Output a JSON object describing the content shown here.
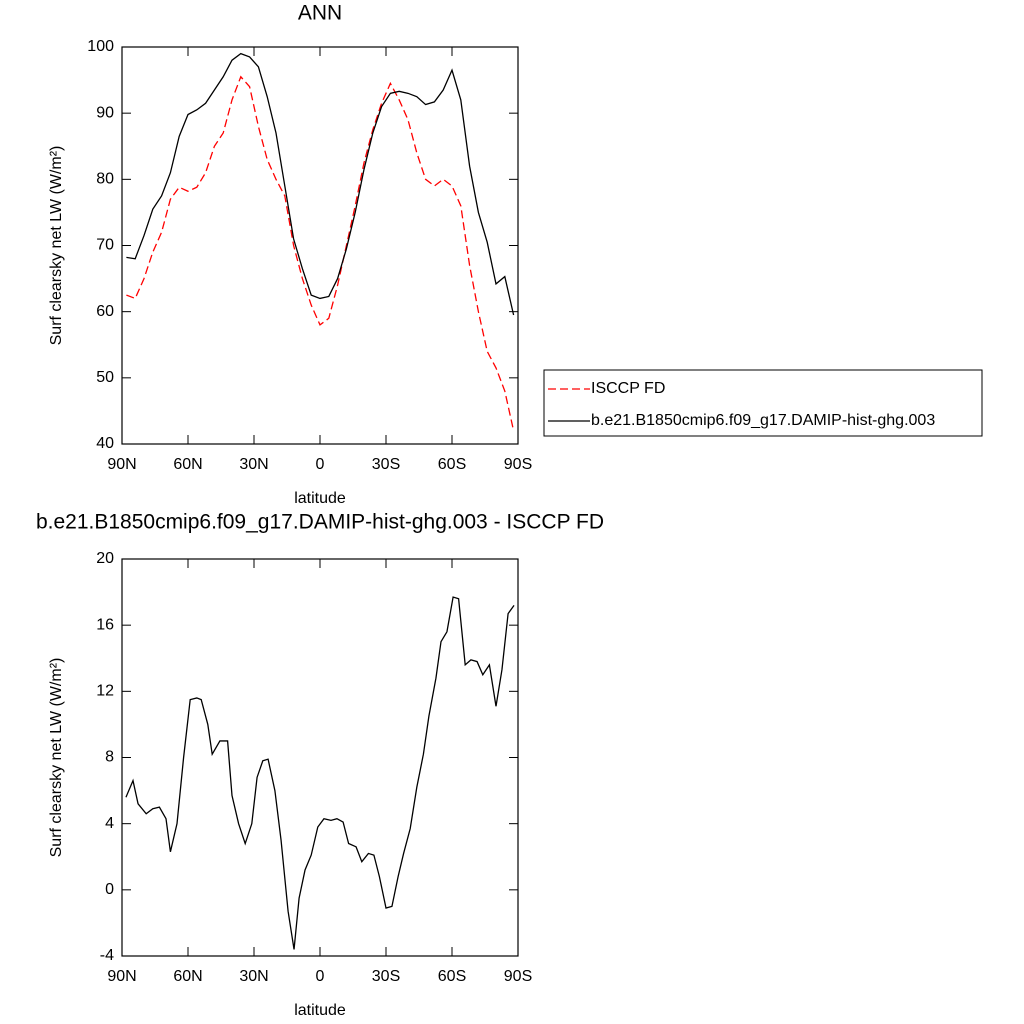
{
  "chart_data": [
    {
      "type": "line",
      "title": "ANN",
      "xlabel": "latitude",
      "ylabel": "Surf clearsky net LW (W/m²)",
      "x": [
        88,
        84,
        80,
        76,
        72,
        68,
        64,
        60,
        56,
        52,
        48,
        44,
        40,
        36,
        32,
        28,
        24,
        20,
        16,
        12,
        8,
        4,
        0,
        -4,
        -8,
        -12,
        -16,
        -20,
        -24,
        -28,
        -32,
        -36,
        -40,
        -44,
        -48,
        -52,
        -56,
        -60,
        -64,
        -68,
        -72,
        -76,
        -80,
        -84,
        -88
      ],
      "series": [
        {
          "name": "ISCCP FD",
          "color": "#ff0000",
          "dashed": true,
          "values": [
            62.5,
            62,
            65,
            69,
            72,
            77,
            78.8,
            78.2,
            78.8,
            81,
            85,
            87,
            92,
            95.5,
            94,
            88,
            83,
            80,
            77.5,
            70,
            65,
            61,
            58,
            59,
            64,
            70,
            76,
            82.5,
            87.5,
            91.5,
            94.5,
            92,
            89,
            84,
            80,
            79,
            80,
            79,
            76,
            67,
            60,
            54,
            51.5,
            48,
            42
          ]
        },
        {
          "name": "b.e21.B1850cmip6.f09_g17.DAMIP-hist-ghg.003",
          "color": "#000000",
          "dashed": false,
          "values": [
            68.2,
            68,
            71.5,
            75.5,
            77.5,
            81,
            86.5,
            89.8,
            90.5,
            91.5,
            93.5,
            95.5,
            98,
            99,
            98.5,
            97,
            92.5,
            87,
            79,
            71,
            66.5,
            62.5,
            62,
            62.3,
            65,
            69.5,
            75,
            81.5,
            87,
            91,
            93,
            93.3,
            93,
            92.5,
            91.3,
            91.7,
            93.5,
            96.5,
            92,
            82,
            75,
            70.5,
            64.2,
            65.3,
            59.5
          ]
        }
      ],
      "xlim": [
        90,
        -90
      ],
      "ylim": [
        40,
        100
      ],
      "xticks": [
        {
          "value": 90,
          "label": "90N"
        },
        {
          "value": 60,
          "label": "60N"
        },
        {
          "value": 30,
          "label": "30N"
        },
        0,
        {
          "value": -30,
          "label": "30S"
        },
        {
          "value": -60,
          "label": "60S"
        },
        {
          "value": -90,
          "label": "90S"
        }
      ],
      "yticks": [
        40,
        50,
        60,
        70,
        80,
        90,
        100
      ],
      "legend": "right"
    },
    {
      "type": "line",
      "title": "b.e21.B1850cmip6.f09_g17.DAMIP-hist-ghg.003 - ISCCP FD",
      "xlabel": "latitude",
      "ylabel": "Surf clearsky net LW (W/m²)",
      "x": [
        88.2,
        85,
        82.7,
        79,
        76,
        73,
        70,
        68,
        65,
        62,
        59,
        56,
        54,
        51,
        49,
        45.5,
        42,
        40,
        37,
        34,
        31,
        28.6,
        26,
        23.6,
        20.5,
        17.7,
        14.5,
        11.8,
        9.5,
        6.8,
        4,
        1,
        -1.8,
        -5,
        -7.7,
        -10.5,
        -13,
        -16.4,
        -19,
        -22,
        -24.5,
        -27,
        -30,
        -32.7,
        -35.5,
        -38,
        -41,
        -44,
        -47,
        -49.5,
        -52.7,
        -55,
        -57.7,
        -60.5,
        -63,
        -66,
        -68.6,
        -71.4,
        -74,
        -77,
        -80,
        -82.7,
        -85.5,
        -88.2
      ],
      "series": [
        {
          "color": "#000000",
          "dashed": false,
          "values": [
            5.6,
            6.6,
            5.2,
            4.6,
            4.9,
            5.0,
            4.3,
            2.3,
            4.0,
            8,
            11.5,
            11.6,
            11.5,
            10,
            8.2,
            9.0,
            9.0,
            5.7,
            4.0,
            2.8,
            4.0,
            6.8,
            7.8,
            7.9,
            6,
            3,
            -1.3,
            -3.6,
            -0.5,
            1.2,
            2.1,
            3.8,
            4.3,
            4.2,
            4.3,
            4.1,
            2.8,
            2.6,
            1.7,
            2.2,
            2.1,
            0.8,
            -1.1,
            -1.0,
            0.8,
            2.2,
            3.7,
            6.2,
            8.2,
            10.5,
            12.8,
            15.0,
            15.6,
            17.7,
            17.6,
            13.6,
            13.9,
            13.8,
            13.0,
            13.6,
            11.1,
            13.3,
            16.7,
            17.2
          ]
        }
      ],
      "xlim": [
        90,
        -90
      ],
      "ylim": [
        -4,
        20
      ],
      "xticks": [
        {
          "value": 90,
          "label": "90N"
        },
        {
          "value": 60,
          "label": "60N"
        },
        {
          "value": 30,
          "label": "30N"
        },
        0,
        {
          "value": -30,
          "label": "30S"
        },
        {
          "value": -60,
          "label": "60S"
        },
        {
          "value": -90,
          "label": "90S"
        }
      ],
      "yticks": [
        -4,
        0,
        4,
        8,
        12,
        16,
        20
      ]
    }
  ]
}
